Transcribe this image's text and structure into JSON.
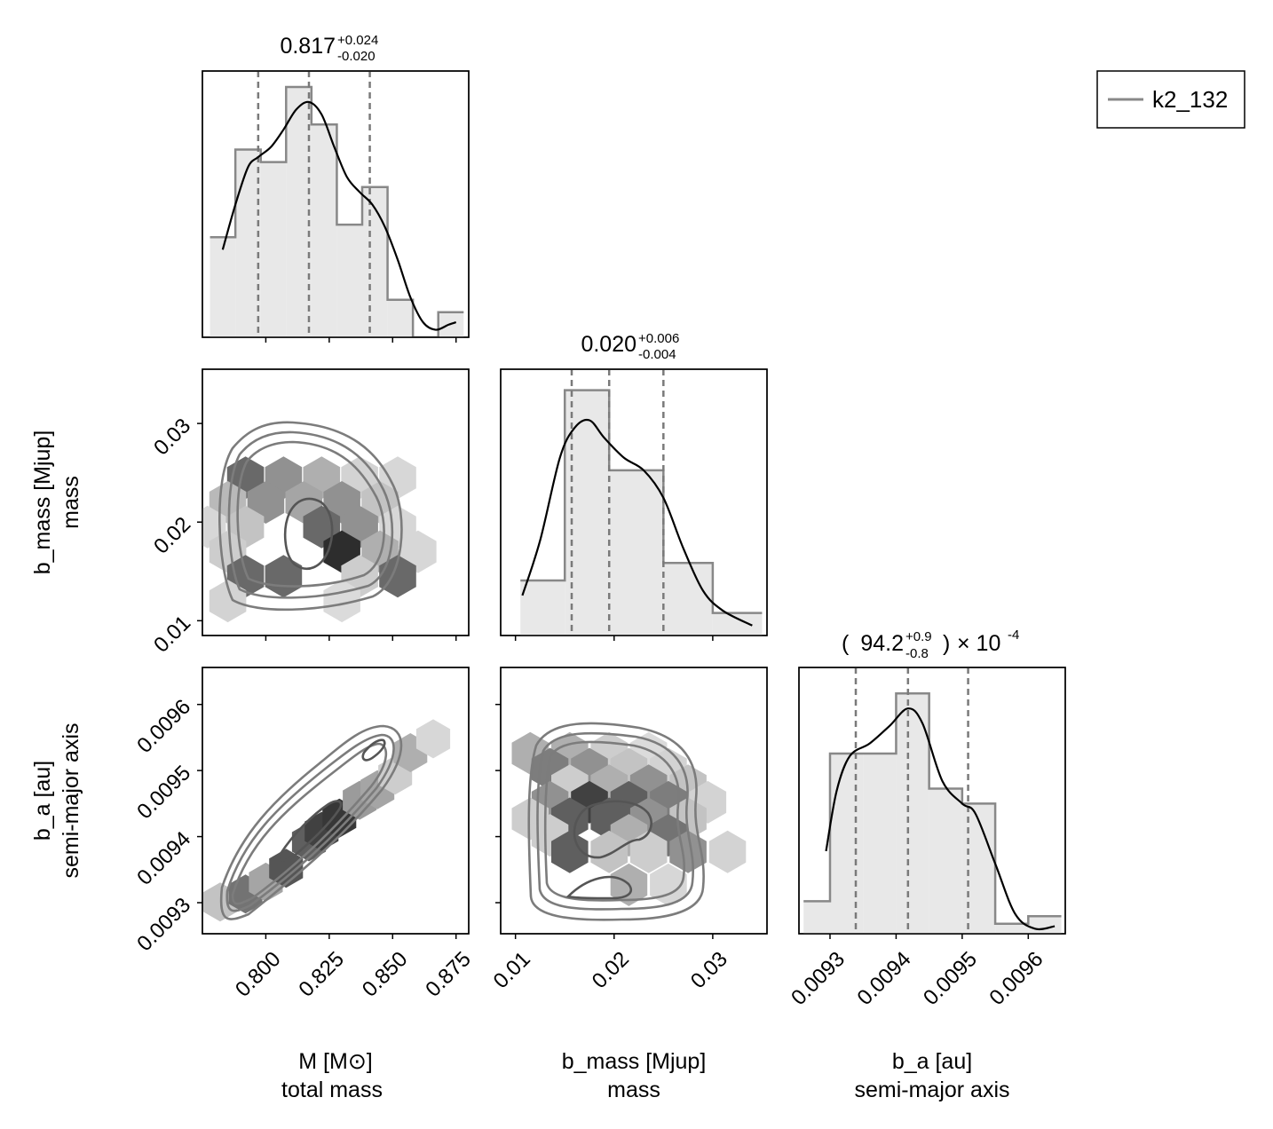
{
  "chart_data": {
    "type": "corner",
    "legend": {
      "label": "k2_132",
      "color": "#888888"
    },
    "params": [
      {
        "key": "M",
        "label": "M [M⊙]",
        "description": "total mass",
        "median_text": "0.817",
        "plus_text": "+0.024",
        "minus_text": "-0.020",
        "range": [
          0.775,
          0.88
        ],
        "ticks": [
          0.8,
          0.825,
          0.85,
          0.875
        ],
        "tick_labels": [
          "0.800",
          "0.825",
          "0.850",
          "0.875"
        ],
        "quantiles": [
          0.797,
          0.817,
          0.841
        ],
        "hist": {
          "edges": [
            0.778,
            0.788,
            0.798,
            0.808,
            0.818,
            0.828,
            0.838,
            0.848,
            0.858,
            0.868,
            0.878
          ],
          "counts": [
            0.4,
            0.75,
            0.7,
            1.0,
            0.85,
            0.45,
            0.6,
            0.15,
            0.0,
            0.1
          ]
        },
        "kde": [
          [
            0.783,
            0.35
          ],
          [
            0.788,
            0.53
          ],
          [
            0.793,
            0.68
          ],
          [
            0.797,
            0.72
          ],
          [
            0.802,
            0.76
          ],
          [
            0.807,
            0.83
          ],
          [
            0.812,
            0.91
          ],
          [
            0.817,
            0.94
          ],
          [
            0.822,
            0.89
          ],
          [
            0.827,
            0.76
          ],
          [
            0.832,
            0.64
          ],
          [
            0.837,
            0.58
          ],
          [
            0.842,
            0.53
          ],
          [
            0.847,
            0.44
          ],
          [
            0.852,
            0.31
          ],
          [
            0.857,
            0.16
          ],
          [
            0.862,
            0.06
          ],
          [
            0.867,
            0.03
          ],
          [
            0.872,
            0.05
          ],
          [
            0.875,
            0.06
          ]
        ]
      },
      {
        "key": "b_mass",
        "label": "b_mass [Mjup]",
        "description": "mass",
        "median_text": "0.020",
        "plus_text": "+0.006",
        "minus_text": "-0.004",
        "range": [
          0.0085,
          0.0355
        ],
        "ticks": [
          0.01,
          0.02,
          0.03
        ],
        "tick_labels": [
          "0.01",
          "0.02",
          "0.03"
        ],
        "quantiles": [
          0.0157,
          0.0195,
          0.025
        ],
        "hist": {
          "edges": [
            0.0105,
            0.015,
            0.0195,
            0.025,
            0.03,
            0.035
          ],
          "counts": [
            0.22,
            0.98,
            0.66,
            0.29,
            0.09
          ]
        },
        "kde": [
          [
            0.0107,
            0.16
          ],
          [
            0.0125,
            0.38
          ],
          [
            0.0145,
            0.71
          ],
          [
            0.016,
            0.83
          ],
          [
            0.0175,
            0.86
          ],
          [
            0.019,
            0.79
          ],
          [
            0.021,
            0.71
          ],
          [
            0.023,
            0.66
          ],
          [
            0.025,
            0.55
          ],
          [
            0.027,
            0.35
          ],
          [
            0.029,
            0.18
          ],
          [
            0.031,
            0.1
          ],
          [
            0.034,
            0.04
          ]
        ]
      },
      {
        "key": "b_a",
        "label": "b_a [au]",
        "description": "semi-major axis",
        "median_text": "94.2",
        "plus_text": "+0.9",
        "minus_text": "-0.8",
        "scale_text": "× 10",
        "scale_exp": "-4",
        "range": [
          0.009253,
          0.009656
        ],
        "ticks": [
          0.0093,
          0.0094,
          0.0095,
          0.0096
        ],
        "tick_labels": [
          "0.0093",
          "0.0094",
          "0.0095",
          "0.0096"
        ],
        "quantiles": [
          0.009339,
          0.009418,
          0.009509
        ],
        "hist": {
          "edges": [
            0.00926,
            0.0093,
            0.00935,
            0.0094,
            0.00945,
            0.0095,
            0.00955,
            0.0096,
            0.00965
          ],
          "counts": [
            0.13,
            0.72,
            0.72,
            0.96,
            0.58,
            0.52,
            0.04,
            0.07
          ]
        },
        "kde": [
          [
            0.009294,
            0.33
          ],
          [
            0.00931,
            0.57
          ],
          [
            0.00933,
            0.71
          ],
          [
            0.00936,
            0.76
          ],
          [
            0.00939,
            0.83
          ],
          [
            0.009418,
            0.9
          ],
          [
            0.00944,
            0.84
          ],
          [
            0.00947,
            0.61
          ],
          [
            0.0095,
            0.52
          ],
          [
            0.00952,
            0.48
          ],
          [
            0.00955,
            0.28
          ],
          [
            0.00958,
            0.08
          ],
          [
            0.00961,
            0.02
          ],
          [
            0.00964,
            0.03
          ]
        ]
      }
    ],
    "hexbins": {
      "b_mass_vs_M": [
        [
          0.792,
          0.0245,
          0.65
        ],
        [
          0.807,
          0.0245,
          0.45
        ],
        [
          0.822,
          0.0245,
          0.3
        ],
        [
          0.837,
          0.0245,
          0.12
        ],
        [
          0.852,
          0.0245,
          0.1
        ],
        [
          0.785,
          0.022,
          0.25
        ],
        [
          0.8,
          0.022,
          0.45
        ],
        [
          0.815,
          0.022,
          0.35
        ],
        [
          0.83,
          0.022,
          0.45
        ],
        [
          0.845,
          0.022,
          0.2
        ],
        [
          0.777,
          0.0195,
          0.1
        ],
        [
          0.792,
          0.0195,
          0.2
        ],
        [
          0.822,
          0.0195,
          0.65
        ],
        [
          0.837,
          0.0195,
          0.45
        ],
        [
          0.852,
          0.0195,
          0.1
        ],
        [
          0.785,
          0.017,
          0.15
        ],
        [
          0.83,
          0.017,
          0.95
        ],
        [
          0.845,
          0.017,
          0.3
        ],
        [
          0.86,
          0.017,
          0.1
        ],
        [
          0.792,
          0.0145,
          0.65
        ],
        [
          0.807,
          0.0145,
          0.65
        ],
        [
          0.837,
          0.0145,
          0.15
        ],
        [
          0.852,
          0.0145,
          0.65
        ],
        [
          0.785,
          0.012,
          0.12
        ],
        [
          0.83,
          0.012,
          0.08
        ]
      ],
      "b_a_vs_M": [
        [
          0.782,
          0.009301,
          0.2
        ],
        [
          0.792,
          0.009313,
          0.6
        ],
        [
          0.8,
          0.009331,
          0.35
        ],
        [
          0.808,
          0.009352,
          0.75
        ],
        [
          0.817,
          0.009392,
          0.7
        ],
        [
          0.822,
          0.009408,
          0.85
        ],
        [
          0.829,
          0.009428,
          0.9
        ],
        [
          0.837,
          0.009455,
          0.4
        ],
        [
          0.844,
          0.009471,
          0.35
        ],
        [
          0.851,
          0.009493,
          0.15
        ],
        [
          0.857,
          0.009527,
          0.3
        ],
        [
          0.866,
          0.009548,
          0.1
        ]
      ],
      "b_a_vs_b_mass": [
        [
          0.0115,
          0.009526,
          0.3
        ],
        [
          0.0155,
          0.009526,
          0.3
        ],
        [
          0.0195,
          0.009526,
          0.15
        ],
        [
          0.0235,
          0.009526,
          0.08
        ],
        [
          0.0135,
          0.009502,
          0.55
        ],
        [
          0.0175,
          0.009502,
          0.45
        ],
        [
          0.0215,
          0.009502,
          0.2
        ],
        [
          0.0255,
          0.009502,
          0.12
        ],
        [
          0.0155,
          0.009477,
          0.15
        ],
        [
          0.0195,
          0.009477,
          0.3
        ],
        [
          0.0235,
          0.009477,
          0.45
        ],
        [
          0.0275,
          0.009477,
          0.2
        ],
        [
          0.0135,
          0.009452,
          0.45
        ],
        [
          0.0175,
          0.009452,
          0.85
        ],
        [
          0.0215,
          0.009452,
          0.7
        ],
        [
          0.0255,
          0.009452,
          0.55
        ],
        [
          0.0295,
          0.009452,
          0.12
        ],
        [
          0.0115,
          0.009427,
          0.15
        ],
        [
          0.0155,
          0.009427,
          0.7
        ],
        [
          0.0195,
          0.009427,
          0.7
        ],
        [
          0.0235,
          0.009427,
          0.45
        ],
        [
          0.0275,
          0.009427,
          0.2
        ],
        [
          0.0135,
          0.009402,
          0.15
        ],
        [
          0.0215,
          0.009402,
          0.3
        ],
        [
          0.0255,
          0.009402,
          0.6
        ],
        [
          0.0155,
          0.009377,
          0.7
        ],
        [
          0.0195,
          0.009377,
          0.2
        ],
        [
          0.0235,
          0.009377,
          0.15
        ],
        [
          0.0275,
          0.009377,
          0.45
        ],
        [
          0.0315,
          0.009377,
          0.12
        ],
        [
          0.0215,
          0.009327,
          0.3
        ],
        [
          0.0255,
          0.009327,
          0.1
        ]
      ]
    }
  }
}
